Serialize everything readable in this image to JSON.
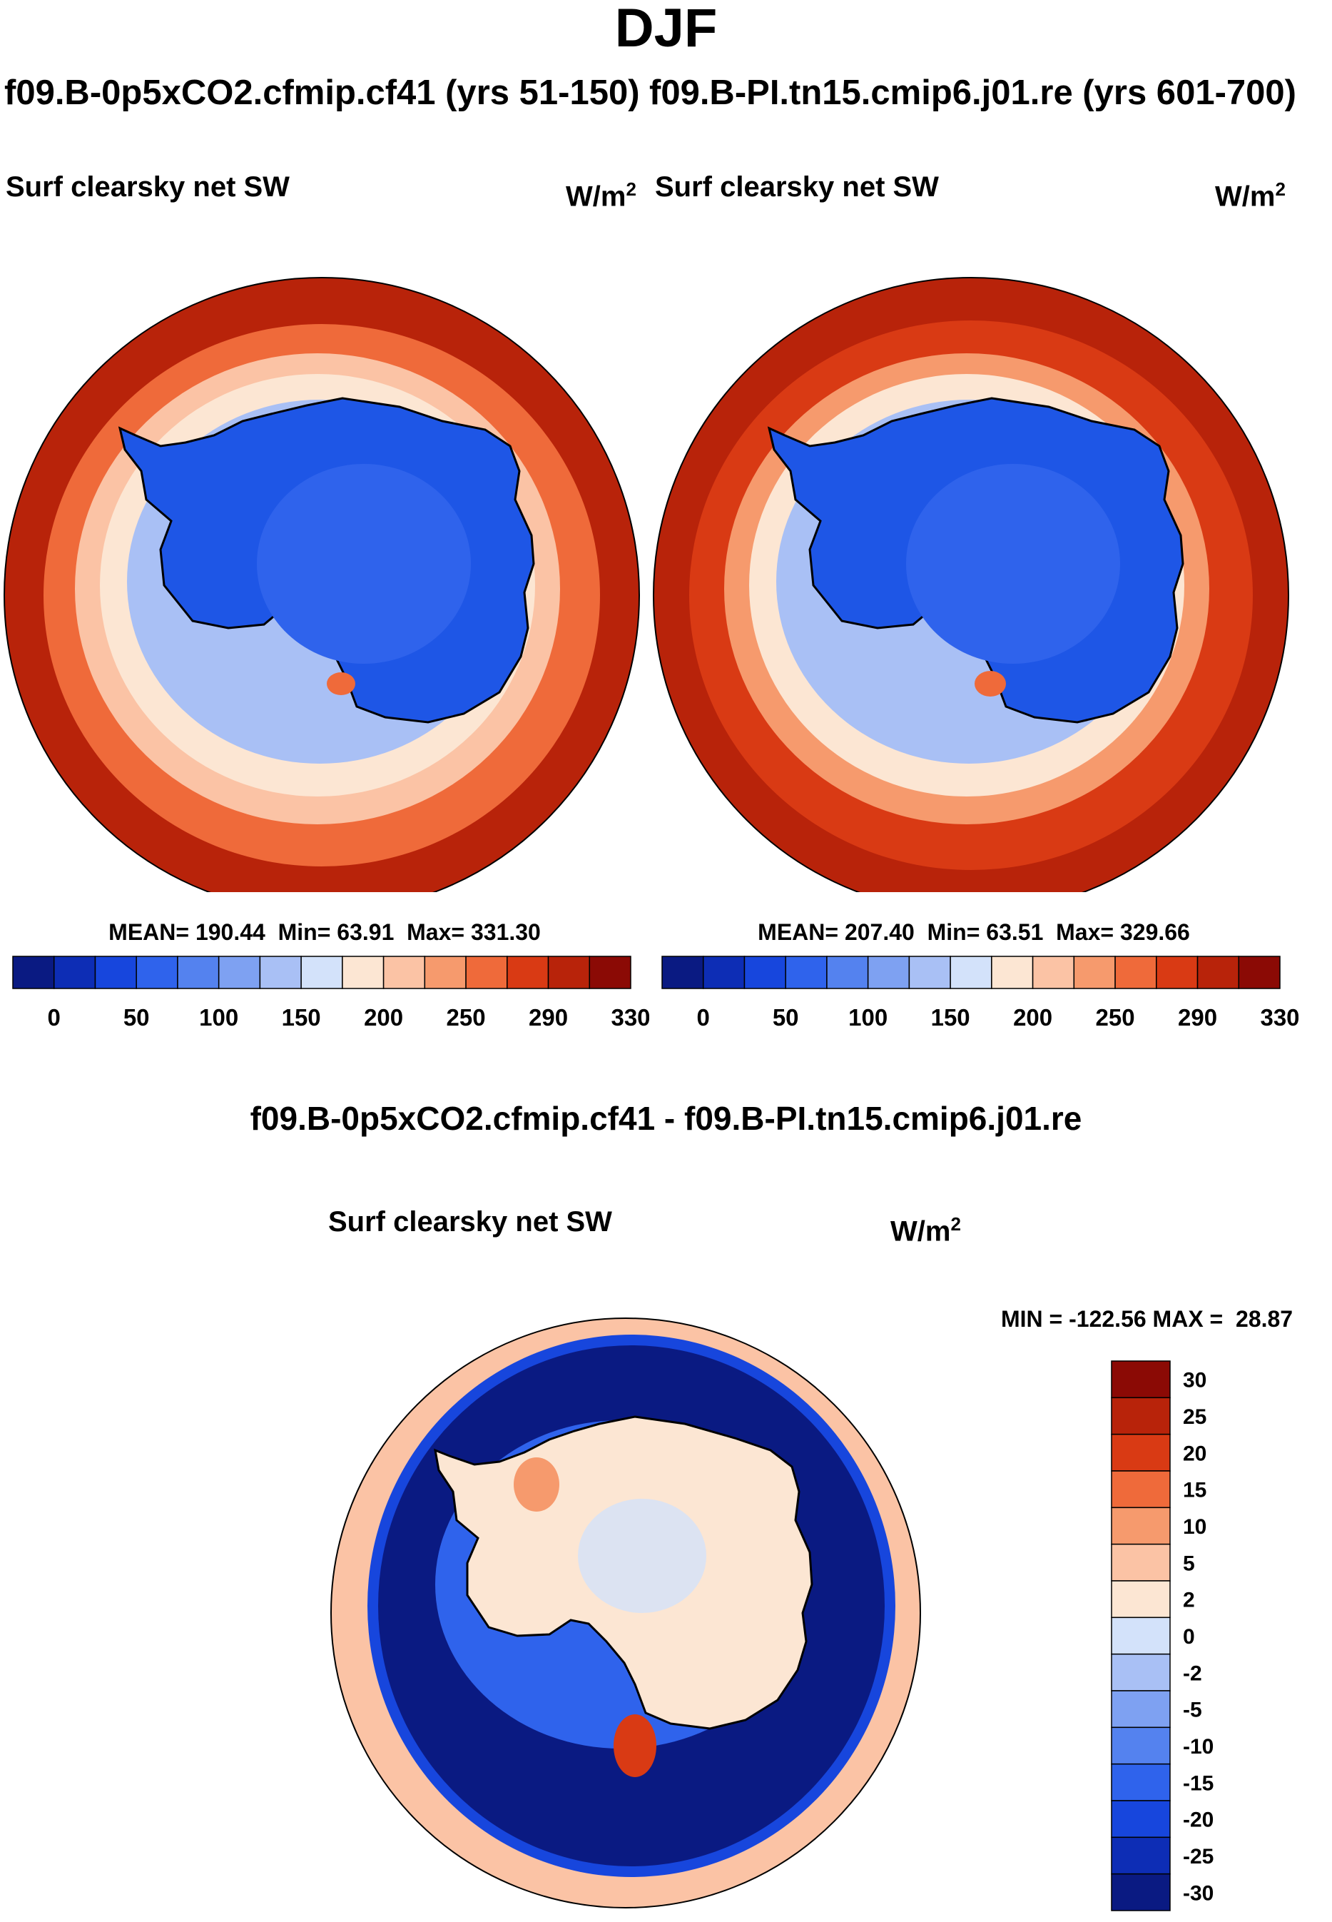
{
  "page": {
    "title": "DJF",
    "subtitle_left": "f09.B-0p5xCO2.cfmip.cf41 (yrs 51-150)",
    "subtitle_right": "f09.B-PI.tn15.cmip6.j01.re (yrs 601-700)",
    "diff_title": "f09.B-0p5xCO2.cfmip.cf41 - f09.B-PI.tn15.cmip6.j01.re"
  },
  "chart_data": [
    {
      "type": "heatmap",
      "projection": "south-polar-stereographic",
      "case": "f09.B-0p5xCO2.cfmip.cf41 (yrs 51-150)",
      "variable": "Surf clearsky net SW",
      "units_base": "W/m",
      "units_exp": "2",
      "stats": {
        "mean_label": "MEAN=",
        "mean": "190.44",
        "min_label": "Min=",
        "min": "63.91",
        "max_label": "Max=",
        "max": "331.30"
      },
      "colorbar": {
        "orientation": "horizontal",
        "levels": [
          0,
          25,
          50,
          75,
          100,
          125,
          150,
          175,
          200,
          225,
          250,
          275,
          290,
          310,
          330
        ],
        "tick_labels": [
          "0",
          "50",
          "100",
          "150",
          "200",
          "250",
          "290",
          "330"
        ],
        "colors": [
          "#0a1a82",
          "#0d2db5",
          "#1746dd",
          "#2f63ec",
          "#5482ef",
          "#7ea1f2",
          "#a9c0f5",
          "#d3e2fa",
          "#fce6d3",
          "#fbc3a5",
          "#f69a6d",
          "#ef6a3a",
          "#d93a14",
          "#b8230a",
          "#8b0a05"
        ]
      },
      "regions": {
        "ocean_far": "#b8230a",
        "ocean_mid": "#ef6a3a",
        "ocean_near": "#fbc3a5",
        "sea_ice": "#a9c0f5",
        "continent": "#1e56e6",
        "continent_inner": "#2f63ec",
        "ross_sea_spot": "#ef6a3a"
      }
    },
    {
      "type": "heatmap",
      "projection": "south-polar-stereographic",
      "case": "f09.B-PI.tn15.cmip6.j01.re (yrs 601-700)",
      "variable": "Surf clearsky net SW",
      "units_base": "W/m",
      "units_exp": "2",
      "stats": {
        "mean_label": "MEAN=",
        "mean": "207.40",
        "min_label": "Min=",
        "min": "63.51",
        "max_label": "Max=",
        "max": "329.66"
      },
      "colorbar": {
        "orientation": "horizontal",
        "levels": [
          0,
          25,
          50,
          75,
          100,
          125,
          150,
          175,
          200,
          225,
          250,
          275,
          290,
          310,
          330
        ],
        "tick_labels": [
          "0",
          "50",
          "100",
          "150",
          "200",
          "250",
          "290",
          "330"
        ],
        "colors": [
          "#0a1a82",
          "#0d2db5",
          "#1746dd",
          "#2f63ec",
          "#5482ef",
          "#7ea1f2",
          "#a9c0f5",
          "#d3e2fa",
          "#fce6d3",
          "#fbc3a5",
          "#f69a6d",
          "#ef6a3a",
          "#d93a14",
          "#b8230a",
          "#8b0a05"
        ]
      },
      "regions": {
        "ocean_far": "#b8230a",
        "ocean_mid": "#d93a14",
        "ocean_near": "#f69a6d",
        "sea_ice": "#a9c0f5",
        "continent": "#1e56e6",
        "continent_inner": "#2f63ec",
        "ross_sea_spot": "#ef6a3a"
      }
    },
    {
      "type": "heatmap",
      "projection": "south-polar-stereographic",
      "case": "f09.B-0p5xCO2.cfmip.cf41 - f09.B-PI.tn15.cmip6.j01.re",
      "variable": "Surf clearsky net SW",
      "units_base": "W/m",
      "units_exp": "2",
      "stats": {
        "min_label": "MIN =",
        "min": "-122.56",
        "max_label": "MAX =",
        "max": "28.87"
      },
      "colorbar": {
        "orientation": "vertical",
        "tick_labels": [
          "30",
          "25",
          "20",
          "15",
          "10",
          "5",
          "2",
          "0",
          "-2",
          "-5",
          "-10",
          "-15",
          "-20",
          "-25",
          "-30"
        ],
        "colors": [
          "#8b0a05",
          "#b8230a",
          "#d93a14",
          "#ef6a3a",
          "#f69a6d",
          "#fbc3a5",
          "#fce6d3",
          "#d3e2fa",
          "#a9c0f5",
          "#7ea1f2",
          "#5482ef",
          "#2f63ec",
          "#1746dd",
          "#0d2db5",
          "#0a1a82"
        ]
      },
      "regions": {
        "ocean_far": "#fbc3a5",
        "ocean_ring": "#0a1a82",
        "ocean_ring_edge": "#1746dd",
        "continent": "#fce6d3",
        "continent_speckle": "#d3e2fa",
        "peninsula_spot": "#f69a6d",
        "ross_sea_spot": "#d93a14"
      }
    }
  ]
}
